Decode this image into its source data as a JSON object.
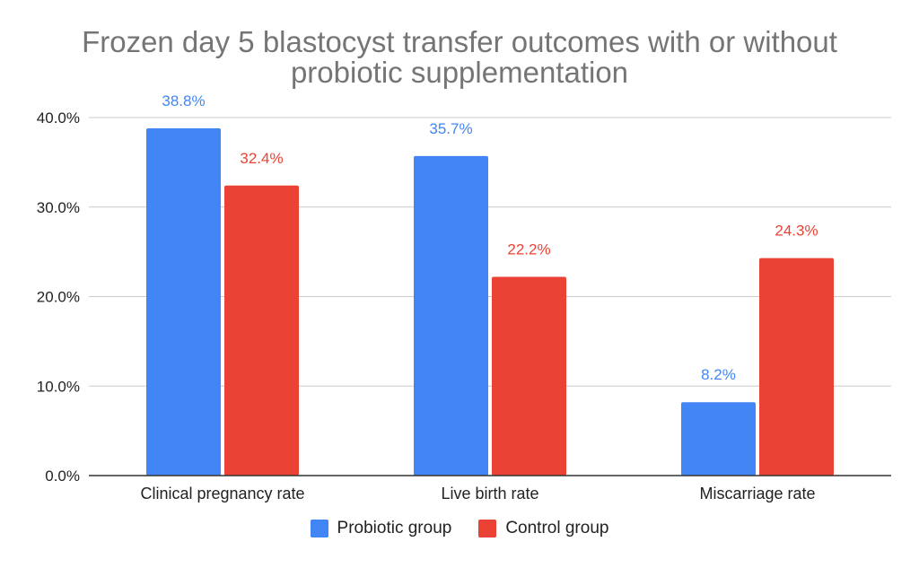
{
  "chart_data": {
    "type": "bar",
    "title_lines": [
      "Frozen day 5 blastocyst transfer outcomes with or without",
      "probiotic supplementation"
    ],
    "categories": [
      "Clinical pregnancy rate",
      "Live birth rate",
      "Miscarriage rate"
    ],
    "series": [
      {
        "name": "Probiotic group",
        "color": "#4285F4",
        "values": [
          38.8,
          35.7,
          8.2
        ],
        "labels": [
          "38.8%",
          "35.7%",
          "8.2%"
        ]
      },
      {
        "name": "Control group",
        "color": "#EA4335",
        "values": [
          32.4,
          22.2,
          24.3
        ],
        "labels": [
          "32.4%",
          "22.2%",
          "24.3%"
        ]
      }
    ],
    "ylim": [
      0,
      40
    ],
    "yticks": [
      0,
      10,
      20,
      30,
      40
    ],
    "ytick_labels": [
      "0.0%",
      "10.0%",
      "20.0%",
      "30.0%",
      "40.0%"
    ],
    "grid": true,
    "legend_position": "bottom"
  }
}
